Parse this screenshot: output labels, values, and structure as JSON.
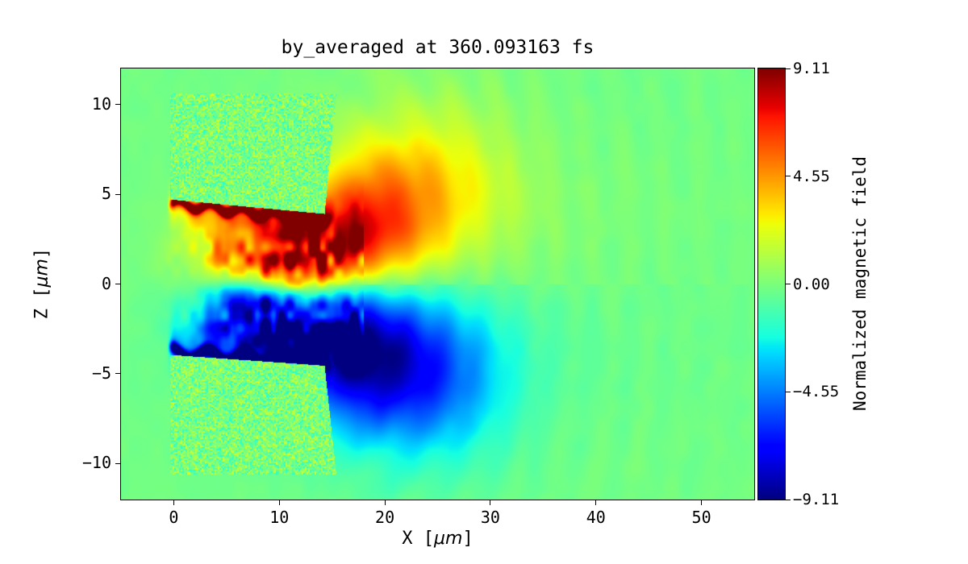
{
  "chart_data": {
    "type": "heatmap",
    "title": "by_averaged at 360.093163 fs",
    "xlabel": "X [μm]",
    "ylabel": "Z [μm]",
    "xlabel_parts": {
      "pre": "X [",
      "unit": "μm",
      "post": "]"
    },
    "ylabel_parts": {
      "pre": "Z [",
      "unit": "μm",
      "post": "]"
    },
    "xlim": [
      -5,
      55
    ],
    "ylim": [
      -12,
      12
    ],
    "grid": false,
    "xticks": {
      "values": [
        0,
        10,
        20,
        30,
        40,
        50
      ],
      "labels": [
        "0",
        "10",
        "20",
        "30",
        "40",
        "50"
      ]
    },
    "yticks": {
      "values": [
        -10,
        -5,
        0,
        5,
        10
      ],
      "labels": [
        "−10",
        "−5",
        "0",
        "5",
        "10"
      ]
    },
    "colormap": "jet",
    "colorbar": {
      "label": "Normalized magnetic field",
      "vmin": -9.11,
      "vmax": 9.11,
      "ticks": [
        {
          "value": 9.11,
          "label": "9.11"
        },
        {
          "value": 4.55,
          "label": "4.55"
        },
        {
          "value": 0,
          "label": "0.00"
        },
        {
          "value": -4.55,
          "label": "−4.55"
        },
        {
          "value": -9.11,
          "label": "−9.11"
        }
      ]
    },
    "field_model": {
      "background": -0.2,
      "bg_noise": 0.3,
      "turbulence": 0.55,
      "target_noise": 2.2,
      "targets": [
        {
          "corners": [
            [
              -0.3,
              4.7
            ],
            [
              14.3,
              3.9
            ],
            [
              15.4,
              10.6
            ],
            [
              -0.3,
              10.6
            ]
          ]
        },
        {
          "corners": [
            [
              -0.3,
              -3.95
            ],
            [
              14.3,
              -4.55
            ],
            [
              15.4,
              -10.6
            ],
            [
              -0.3,
              -10.6
            ]
          ]
        }
      ],
      "sheets": [
        {
          "x0": -0.3,
          "x1": 14.0,
          "z0": 4.5,
          "z1": 3.65,
          "wave_amp": 0.22,
          "wave_k": 2.1,
          "phase": 0.5,
          "sigma": 0.22,
          "amp": 9.0,
          "glow": 0.38,
          "glow_sigma": 0.8
        },
        {
          "x0": -0.3,
          "x1": 13.6,
          "z0": -3.78,
          "z1": -4.42,
          "wave_amp": 0.26,
          "wave_k": 1.8,
          "phase": 2.0,
          "sigma": 0.24,
          "amp": -9.0,
          "glow": 0.34,
          "glow_sigma": 0.85
        }
      ],
      "lobes": [
        {
          "cx": 11.8,
          "cz": 1.0,
          "sx": 2.6,
          "sz": 1.35,
          "a": 8.0
        },
        {
          "cx": 7.0,
          "cz": 1.7,
          "sx": 3.8,
          "sz": 1.5,
          "a": 5.0
        },
        {
          "cx": 16.5,
          "cz": 2.4,
          "sx": 4.2,
          "sz": 2.1,
          "a": 4.6
        },
        {
          "cx": 21.0,
          "cz": 4.6,
          "sx": 5.5,
          "sz": 2.7,
          "a": 2.8
        },
        {
          "cx": 25.0,
          "cz": 7.0,
          "sx": 6.0,
          "sz": 3.0,
          "a": 1.4
        },
        {
          "cx": 17.0,
          "cz": 1.5,
          "sx": 9.0,
          "sz": 3.2,
          "a": 1.6
        },
        {
          "cx": 10.5,
          "cz": -1.6,
          "sx": 3.4,
          "sz": 1.5,
          "a": -6.2
        },
        {
          "cx": 5.8,
          "cz": -1.7,
          "sx": 3.2,
          "sz": 1.3,
          "a": -4.6
        },
        {
          "cx": 15.5,
          "cz": -3.2,
          "sx": 4.8,
          "sz": 2.4,
          "a": -4.8
        },
        {
          "cx": 20.5,
          "cz": -4.6,
          "sx": 6.0,
          "sz": 3.0,
          "a": -3.6
        },
        {
          "cx": 25.0,
          "cz": -6.2,
          "sx": 5.5,
          "sz": 3.0,
          "a": -1.9
        },
        {
          "cx": 17.0,
          "cz": -2.6,
          "sx": 9.5,
          "sz": 3.8,
          "a": -1.6
        }
      ],
      "tint": {
        "amp": 1.0,
        "cz": 3.5,
        "sz": 4.0,
        "x_start": 14,
        "decay": 16
      },
      "ripples": {
        "cx": 14.5,
        "k": 1.8,
        "amp": 0.4,
        "decay": 30,
        "z_stretch": 0.85
      }
    }
  }
}
